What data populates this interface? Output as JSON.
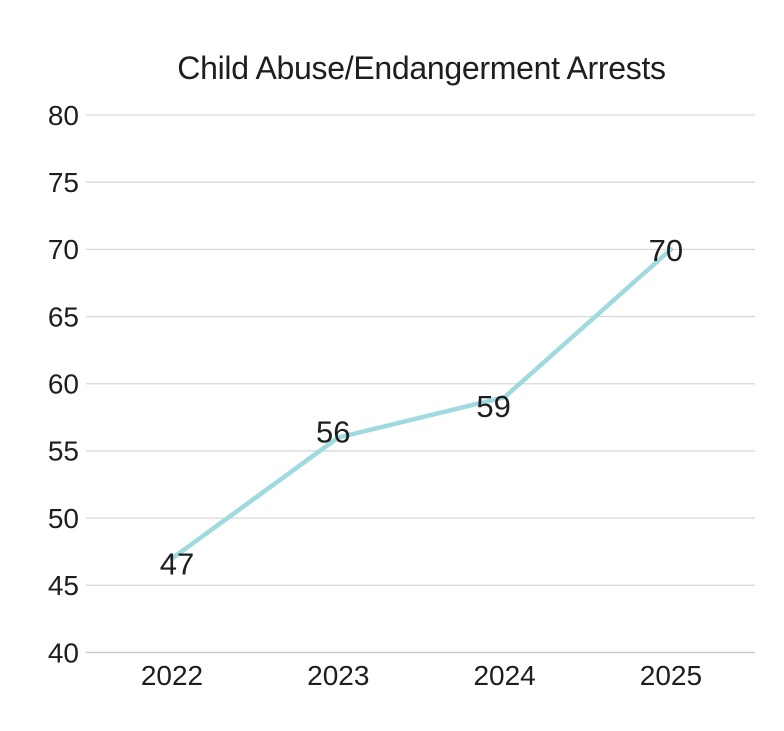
{
  "chart_data": {
    "type": "line",
    "title": "Child Abuse/Endangerment Arrests",
    "categories": [
      "2022",
      "2023",
      "2024",
      "2025"
    ],
    "values": [
      47,
      56,
      59,
      70
    ],
    "ylim": [
      40,
      80
    ],
    "yticks": [
      40,
      45,
      50,
      55,
      60,
      65,
      70,
      75,
      80
    ],
    "xlabel": "",
    "ylabel": "",
    "grid": true,
    "legend": "none",
    "colors": {
      "line": "#9edade",
      "grid": "#d9d9d9",
      "axis_line": "#c9c9c9",
      "text": "#1e1e1e",
      "background": "#ffffff"
    }
  }
}
